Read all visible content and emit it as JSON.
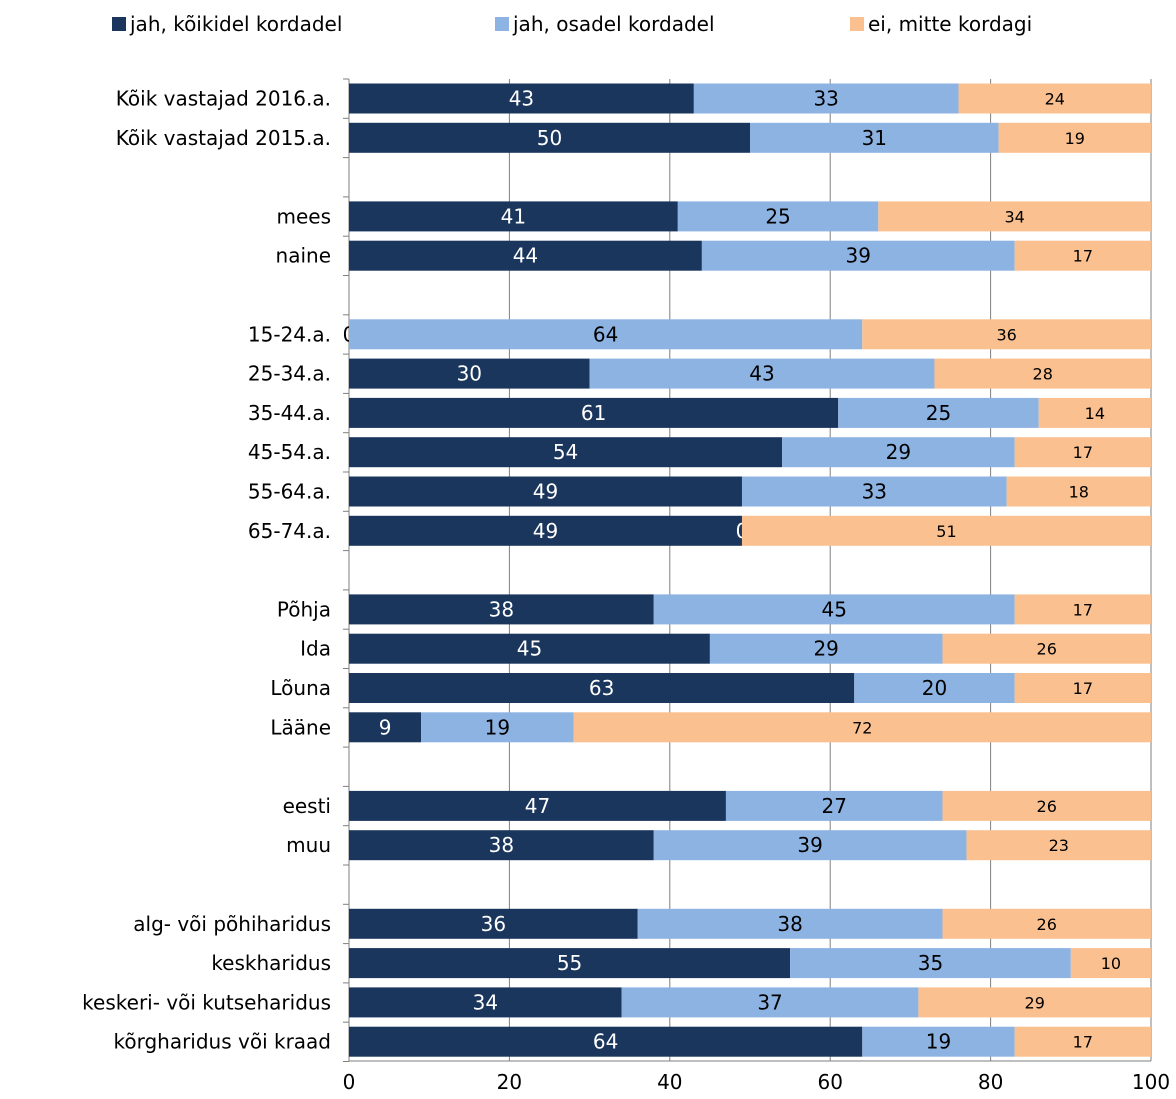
{
  "chart_data": {
    "type": "bar",
    "orientation": "horizontal",
    "stacked": true,
    "title": "",
    "xlabel": "",
    "ylabel": "",
    "xlim": [
      0,
      100
    ],
    "x_ticks": [
      "0",
      "20",
      "40",
      "60",
      "80",
      "100"
    ],
    "grid": "vertical",
    "legend_position": "top",
    "categories": [
      "Kõik vastajad 2016.a.",
      "Kõik vastajad 2015.a.",
      "mees",
      "naine",
      "15-24.a.",
      "25-34.a.",
      "35-44.a.",
      "45-54.a.",
      "55-64.a.",
      "65-74.a.",
      "Põhja",
      "Ida",
      "Lõuna",
      "Lääne",
      "eesti",
      "muu",
      "alg- või põhiharidus",
      "keskharidus",
      "keskeri- või kutseharidus",
      "kõrgharidus või kraad"
    ],
    "groups": [
      2,
      2,
      6,
      4,
      2,
      4
    ],
    "series": [
      {
        "name": "jah, kõikidel kordadel",
        "color": "#1a365d",
        "label_color": "#ffffff",
        "values": [
          43,
          50,
          41,
          44,
          0,
          30,
          61,
          54,
          49,
          49,
          38,
          45,
          63,
          9,
          47,
          38,
          36,
          55,
          34,
          64
        ]
      },
      {
        "name": "jah, osadel kordadel",
        "color": "#8db3e2",
        "label_color": "#000000",
        "values": [
          33,
          31,
          25,
          39,
          64,
          43,
          25,
          29,
          33,
          0,
          45,
          29,
          20,
          19,
          27,
          39,
          38,
          35,
          37,
          19
        ]
      },
      {
        "name": "ei, mitte kordagi",
        "color": "#fac090",
        "label_color": "#000000",
        "values": [
          24,
          19,
          34,
          17,
          36,
          28,
          14,
          17,
          18,
          51,
          17,
          26,
          17,
          72,
          26,
          23,
          26,
          10,
          29,
          17
        ]
      }
    ]
  }
}
